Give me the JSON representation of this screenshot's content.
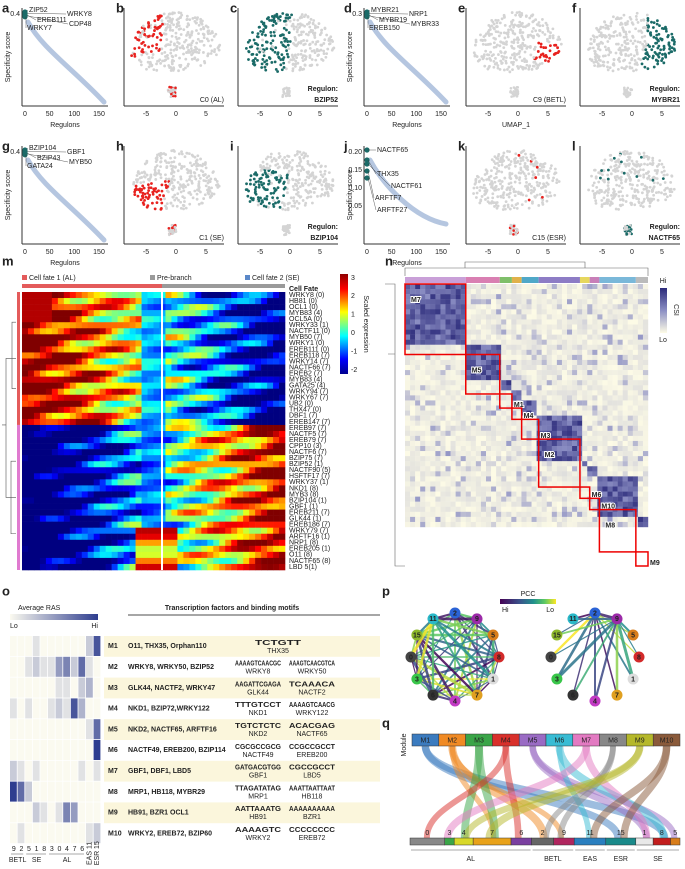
{
  "score_panels": [
    {
      "label": "a",
      "y_label": "Specificity score",
      "x_label": "Regulons",
      "yticks": [
        "0.4"
      ],
      "xticks": [
        "0",
        "50",
        "100",
        "150"
      ],
      "regulons": [
        "ZIP52",
        "WRKY8",
        "EREB111",
        "CDP48",
        "WRKY7"
      ]
    },
    {
      "label": "d",
      "y_label": "Specificity score",
      "x_label": "Regulons",
      "yticks": [
        "0.3"
      ],
      "xticks": [
        "0",
        "50",
        "100",
        "150"
      ],
      "regulons": [
        "MYBR21",
        "NRP1",
        "MYBR19",
        "MYBR33",
        "EREB150"
      ]
    },
    {
      "label": "g",
      "y_label": "Specificity score",
      "x_label": "Regulons",
      "yticks": [
        "0.4"
      ],
      "xticks": [
        "0",
        "50",
        "100",
        "150"
      ],
      "regulons": [
        "BZIP104",
        "GBF1",
        "BZIP43",
        "MYB50",
        "GATA24"
      ]
    },
    {
      "label": "j",
      "y_label": "Specificity score",
      "x_label": "Regulons",
      "yticks": [
        "0.20",
        "0.15",
        "0.10",
        "0.05"
      ],
      "xticks": [
        "0",
        "50",
        "100",
        "150"
      ],
      "regulons": [
        "NACTF65",
        "THX35",
        "NACTF61",
        "ARFTF7",
        "ARFTF27"
      ]
    }
  ],
  "umap_panels": [
    {
      "label": "b",
      "xticks": [
        "-5",
        "0",
        "5"
      ],
      "caption": [
        "C0 (AL)"
      ],
      "color": "#e8221f"
    },
    {
      "label": "c",
      "xticks": [
        "-5",
        "0",
        "5"
      ],
      "caption": [
        "Regulon:",
        "BZIP52"
      ],
      "color": "#1b6b68"
    },
    {
      "label": "e",
      "x_label": "UMAP_1",
      "xticks": [
        "-5",
        "0",
        "5"
      ],
      "caption": [
        "C9 (BETL)"
      ],
      "color": "#e8221f"
    },
    {
      "label": "f",
      "xticks": [
        "-5",
        "0",
        "5"
      ],
      "caption": [
        "Regulon:",
        "MYBR21"
      ],
      "color": "#1b6b68"
    },
    {
      "label": "h",
      "xticks": [
        "-5",
        "0",
        "5"
      ],
      "caption": [
        "C1 (SE)"
      ],
      "color": "#e8221f"
    },
    {
      "label": "i",
      "xticks": [
        "-5",
        "0",
        "5"
      ],
      "caption": [
        "Regulon:",
        "BZIP104"
      ],
      "color": "#1b6b68"
    },
    {
      "label": "k",
      "xticks": [
        "-5",
        "0",
        "5"
      ],
      "caption": [
        "C15 (ESR)"
      ],
      "color": "#e8221f"
    },
    {
      "label": "l",
      "xticks": [
        "-5",
        "0",
        "5"
      ],
      "caption": [
        "Regulon:",
        "NACTF65"
      ],
      "color": "#1b6b68"
    }
  ],
  "heatmap": {
    "label": "m",
    "branches": [
      "Cell fate 1 (AL)",
      "Pre-branch",
      "Cell fate 2 (SE)"
    ],
    "row_header": "Cell Fate",
    "genes": [
      "WRKY8 (0)",
      "HB81 (0)",
      "OCL1 (0)",
      "MYB83 (4)",
      "OCL5A (0)",
      "WRKY33 (1)",
      "NACTF11 (0)",
      "MYB50 (7)",
      "WRKY1 (0)",
      "EREB111 (0)",
      "EREB118 (7)",
      "WRKY14 (7)",
      "NACTF66 (7)",
      "EREB2 (7)",
      "MYB83 (4)",
      "GATA25 (4)",
      "WRKY94 (7)",
      "WRKY67 (7)",
      "UB2 (0)",
      "THX47 (0)",
      "DBF1 (7)",
      "EREB147 (7)",
      "EREB97 (7)",
      "NACTF5 (7)",
      "EREB79 (7)",
      "CPP10 (3)",
      "NACTF6 (7)",
      "BZIP75 (7)",
      "BZIP52 (1)",
      "NACTF90 (5)",
      "HSFTF17 (7)",
      "WRKY37 (1)",
      "NKD1 (8)",
      "MYB3 (8)",
      "BZIP104 (1)",
      "GBF1 (1)",
      "EREB211 (7)",
      "GLK44 (1)",
      "EREB186 (7)",
      "WRKY79 (7)",
      "ARFTF16 (1)",
      "NRP1 (8)",
      "EREB205 (1)",
      "O11 (8)",
      "NACTF65 (8)",
      "LBD 5(1)"
    ],
    "colorbar_label": "Scaled expression",
    "colorbar_ticks": [
      "3",
      "2",
      "1",
      "0",
      "-1",
      "-2"
    ]
  },
  "csi": {
    "label": "n",
    "modules": [
      "M7",
      "M5",
      "M1",
      "M4",
      "M3",
      "M2",
      "M6",
      "M10",
      "M8",
      "M9"
    ],
    "legend_title": "CSI",
    "legend_hi": "Hi",
    "legend_lo": "Lo"
  },
  "ras": {
    "label": "o",
    "legend_title": "Average RAS",
    "legend_lo": "Lo",
    "legend_hi": "Hi",
    "header": "Transcription factors and binding motifs",
    "columns": [
      "9",
      "2",
      "5",
      "1",
      "8",
      "3",
      "0",
      "4",
      "7",
      "6",
      "11",
      "15"
    ],
    "groups": [
      "BETL",
      "SE",
      "AL",
      "EAS",
      "ESR"
    ],
    "rows": [
      {
        "module": "M1",
        "tfs": "O11, THX35, Orphan110",
        "values": [
          0.1,
          0.1,
          0.1,
          0.2,
          0.1,
          0.1,
          0.1,
          0.1,
          0.1,
          0.1,
          0.3,
          0.8
        ],
        "motifs": [
          {
            "seq": "TCTGTT",
            "name": "THX35"
          }
        ]
      },
      {
        "module": "M2",
        "tfs": "WRKY8, WRKY50, BZIP52",
        "values": [
          0.1,
          0.1,
          0.2,
          0.3,
          0.2,
          0.2,
          0.5,
          0.6,
          0.3,
          0.7,
          0.2,
          0.1
        ],
        "motifs": [
          {
            "seq": "AAAAGTCAACGC",
            "name": "WRKY8"
          },
          {
            "seq": "AAAGTCAACGTCA",
            "name": "WRKY50"
          }
        ]
      },
      {
        "module": "M3",
        "tfs": "GLK44, NACTF2, WRKY47",
        "values": [
          0.1,
          0.1,
          0.1,
          0.1,
          0.1,
          0.1,
          0.2,
          0.2,
          0.1,
          0.3,
          0.4,
          0.1
        ],
        "motifs": [
          {
            "seq": "AAGATTCGAGA",
            "name": "GLK44"
          },
          {
            "seq": "TCAAACA",
            "name": "NACTF2"
          }
        ]
      },
      {
        "module": "M4",
        "tfs": "NKD1, BZIP72,WRKY122",
        "values": [
          0.2,
          0.1,
          0.2,
          0.1,
          0.1,
          0.2,
          0.3,
          0.2,
          0.8,
          0.4,
          0.1,
          0.1
        ],
        "motifs": [
          {
            "seq": "TTTGTCCT",
            "name": "NKD1"
          },
          {
            "seq": "AAAAGTCAACG",
            "name": "WRKY122"
          }
        ]
      },
      {
        "module": "M5",
        "tfs": "NKD2, NACTF65, ARFTF16",
        "values": [
          0.1,
          0.1,
          0.1,
          0.1,
          0.1,
          0.1,
          0.1,
          0.1,
          0.1,
          0.1,
          0.2,
          0.7
        ],
        "motifs": [
          {
            "seq": "TGTCTCTC",
            "name": "NKD2"
          },
          {
            "seq": "ACACGAG",
            "name": "NACTF65"
          }
        ]
      },
      {
        "module": "M6",
        "tfs": "NACTF49, EREB200, BZIP114",
        "values": [
          0.1,
          0.1,
          0.1,
          0.1,
          0.1,
          0.1,
          0.1,
          0.1,
          0.1,
          0.1,
          0.1,
          0.9
        ],
        "motifs": [
          {
            "seq": "CGCGCCGCG",
            "name": "NACTF49"
          },
          {
            "seq": "CCGCCGCCT",
            "name": "EREB200"
          }
        ]
      },
      {
        "module": "M7",
        "tfs": "GBF1, DBF1, LBD5",
        "values": [
          0.3,
          0.2,
          0.1,
          0.2,
          0.1,
          0.1,
          0.1,
          0.1,
          0.1,
          0.2,
          0.1,
          0.2
        ],
        "motifs": [
          {
            "seq": "GATGACGTGG",
            "name": "GBF1"
          },
          {
            "seq": "CGCCGCCT",
            "name": "LBD5"
          }
        ]
      },
      {
        "module": "M8",
        "tfs": "MRP1, HB118, MYBR29",
        "values": [
          0.9,
          0.7,
          0.3,
          0.1,
          0.1,
          0.1,
          0.1,
          0.1,
          0.1,
          0.1,
          0.1,
          0.1
        ],
        "motifs": [
          {
            "seq": "TTAGATATAG",
            "name": "MRP1"
          },
          {
            "seq": "AAATTAATTAAT",
            "name": "HB118"
          }
        ]
      },
      {
        "module": "M9",
        "tfs": "HB91, BZR1 OCL1",
        "values": [
          0.1,
          0.1,
          0.1,
          0.3,
          0.2,
          0.1,
          0.2,
          0.6,
          0.5,
          0.1,
          0.1,
          0.1
        ],
        "motifs": [
          {
            "seq": "AATTAAATG",
            "name": "HB91"
          },
          {
            "seq": "AAAAAAAAAA",
            "name": "BZR1"
          }
        ]
      },
      {
        "module": "M10",
        "tfs": "WRKY2, EREB72, BZIP60",
        "values": [
          0.1,
          0.2,
          0.1,
          0.1,
          0.1,
          0.1,
          0.1,
          0.1,
          0.1,
          0.1,
          0.2,
          0.3
        ],
        "motifs": [
          {
            "seq": "AAAAGTC",
            "name": "WRKY2"
          },
          {
            "seq": "CCCCCCCC",
            "name": "EREB72"
          }
        ]
      }
    ]
  },
  "network": {
    "label": "p",
    "legend_title": "PCC",
    "legend_hi": "Hi",
    "legend_lo": "Lo",
    "nodes": [
      "2",
      "9",
      "5",
      "8",
      "1",
      "7",
      "4",
      "6",
      "3",
      "0",
      "15",
      "11"
    ]
  },
  "alluvial": {
    "label": "q",
    "axis_label": "Module",
    "modules": [
      "M1",
      "M2",
      "M3",
      "M4",
      "M5",
      "M6",
      "M7",
      "M8",
      "M9",
      "M10"
    ],
    "clusters": [
      "0",
      "3",
      "4",
      "7",
      "6",
      "2",
      "9",
      "11",
      "15",
      "1",
      "8",
      "5"
    ],
    "groups": [
      "AL",
      "BETL",
      "EAS",
      "ESR",
      "SE"
    ]
  }
}
